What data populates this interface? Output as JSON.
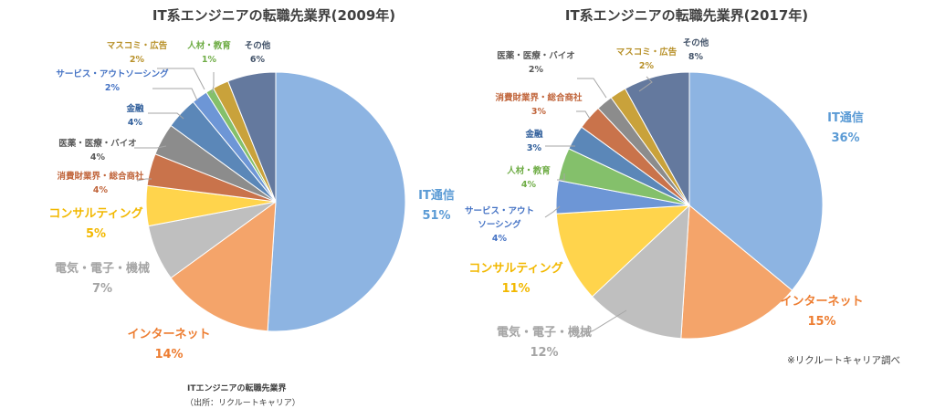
{
  "colors": {
    "IT通信": "#8db4e2",
    "インターネット": "#f4a46a",
    "電気・電子・機械": "#bfbfbf",
    "コンサルティング": "#ffd44c",
    "消費財業界・総合商社": "#c9734b",
    "医薬・医療・バイオ": "#8c8c8c",
    "金融": "#5b87b8",
    "サービス・アウトソーシング": "#6d96d6",
    "人材・教育": "#84c06b",
    "マスコミ・広告": "#c9a23b",
    "その他": "#64799e"
  },
  "label_colors": {
    "IT通信": "#5b9bd5",
    "インターネット": "#ed7d31",
    "電気・電子・機械": "#a5a5a5",
    "コンサルティング": "#f2b800",
    "消費財業界・総合商社": "#c0643a",
    "医薬・医療・バイオ": "#595959",
    "金融": "#2e5d9a",
    "サービス・アウトソーシング": "#4472c4",
    "人材・教育": "#70ad47",
    "マスコミ・広告": "#b8912a",
    "その他": "#44546a"
  },
  "chart_data": [
    {
      "type": "pie",
      "title": "IT系エンジニアの転職先業界(2009年)",
      "categories": [
        "IT通信",
        "インターネット",
        "電気・電子・機械",
        "コンサルティング",
        "消費財業界・総合商社",
        "医薬・医療・バイオ",
        "金融",
        "サービス・アウトソーシング",
        "人材・教育",
        "マスコミ・広告",
        "その他"
      ],
      "values": [
        51,
        14,
        7,
        5,
        4,
        4,
        4,
        2,
        1,
        2,
        6
      ],
      "labels": [
        {
          "name": [
            "IT通信"
          ],
          "pct": "51%"
        },
        {
          "name": [
            "インターネット"
          ],
          "pct": "14%"
        },
        {
          "name": [
            "電気・電子・機械"
          ],
          "pct": "7%"
        },
        {
          "name": [
            "コンサルティング"
          ],
          "pct": "5%"
        },
        {
          "name": [
            "消費財業界・総合商社"
          ],
          "pct": "4%"
        },
        {
          "name": [
            "医薬・医療・バイオ"
          ],
          "pct": "4%"
        },
        {
          "name": [
            "金融"
          ],
          "pct": "4%"
        },
        {
          "name": [
            "サービス・アウトソーシング"
          ],
          "pct": "2%"
        },
        {
          "name": [
            "人材・教育"
          ],
          "pct": "1%"
        },
        {
          "name": [
            "マスコミ・広告"
          ],
          "pct": "2%"
        },
        {
          "name": [
            "その他"
          ],
          "pct": "6%"
        }
      ]
    },
    {
      "type": "pie",
      "title": "IT系エンジニアの転職先業界(2017年)",
      "categories": [
        "IT通信",
        "インターネット",
        "電気・電子・機械",
        "コンサルティング",
        "サービス・アウトソーシング",
        "人材・教育",
        "金融",
        "消費財業界・総合商社",
        "医薬・医療・バイオ",
        "マスコミ・広告",
        "その他"
      ],
      "values": [
        36,
        15,
        12,
        11,
        4,
        4,
        3,
        3,
        2,
        2,
        8
      ],
      "labels": [
        {
          "name": [
            "IT通信"
          ],
          "pct": "36%"
        },
        {
          "name": [
            "インターネット"
          ],
          "pct": "15%"
        },
        {
          "name": [
            "電気・電子・機械"
          ],
          "pct": "12%"
        },
        {
          "name": [
            "コンサルティング"
          ],
          "pct": "11%"
        },
        {
          "name": [
            "サービス・アウト",
            "ソーシング"
          ],
          "pct": "4%"
        },
        {
          "name": [
            "人材・教育"
          ],
          "pct": "4%"
        },
        {
          "name": [
            "金融"
          ],
          "pct": "3%"
        },
        {
          "name": [
            "消費財業界・総合商社"
          ],
          "pct": "3%"
        },
        {
          "name": [
            "医薬・医療・バイオ"
          ],
          "pct": "2%"
        },
        {
          "name": [
            "マスコミ・広告"
          ],
          "pct": "2%"
        },
        {
          "name": [
            "その他"
          ],
          "pct": "8%"
        }
      ]
    }
  ],
  "source_note": "※リクルートキャリア調べ",
  "footnote": {
    "title": "ITエンジニアの転職先業界",
    "source": "（出所：リクルートキャリア）"
  }
}
